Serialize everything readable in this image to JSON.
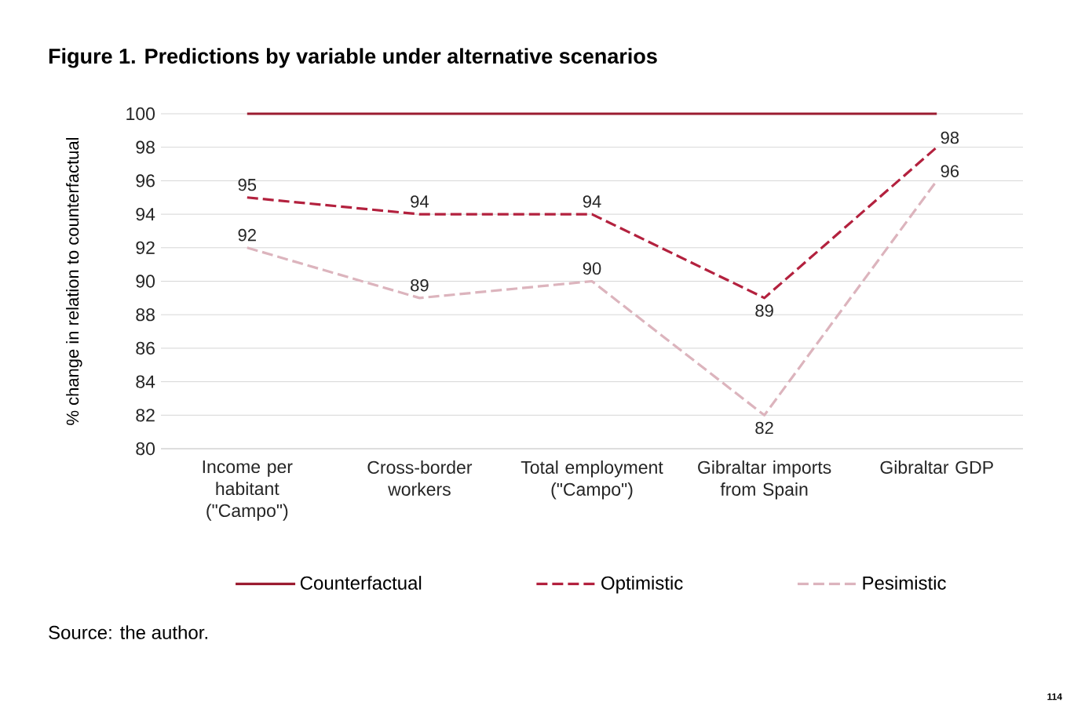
{
  "chart_data": {
    "type": "line",
    "title": "Figure 1. Predictions by variable under alternative scenarios",
    "ylabel": "% change in relation to counterfactual",
    "categories": [
      "Income per habitant (\"Campo\")",
      "Cross-border workers",
      "Total employment (\"Campo\")",
      "Gibraltar imports from Spain",
      "Gibraltar GDP"
    ],
    "series": [
      {
        "name": "Counterfactual",
        "color": "#9b1c31",
        "line_style": "solid",
        "values": [
          100,
          100,
          100,
          100,
          100
        ]
      },
      {
        "name": "Optimistic",
        "color": "#b3213e",
        "line_style": "dashed",
        "values": [
          95,
          94,
          94,
          89,
          98
        ],
        "value_labels": [
          "95",
          "94",
          "94",
          "89",
          "98"
        ]
      },
      {
        "name": "Pesimistic",
        "color": "#dcb4bd",
        "line_style": "dashed",
        "values": [
          92,
          89,
          90,
          82,
          96
        ],
        "value_labels": [
          "92",
          "89",
          "90",
          "82",
          "96"
        ]
      }
    ],
    "ylim": [
      80,
      100
    ],
    "yticks": [
      80,
      82,
      84,
      86,
      88,
      90,
      92,
      94,
      96,
      98,
      100
    ],
    "grid": "y",
    "legend": "bottom",
    "marker": "none",
    "annotations": [
      "Source: the author.",
      "114"
    ]
  }
}
